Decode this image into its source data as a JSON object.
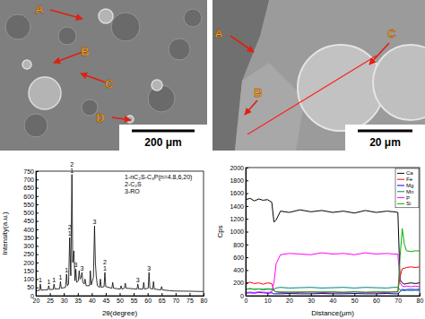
{
  "images": [
    {
      "labels": [
        "A",
        "B",
        "C",
        "D"
      ],
      "scale_bar": "200 μm"
    },
    {
      "labels": [
        "A",
        "B",
        "C"
      ],
      "scale_bar": "20 μm"
    }
  ],
  "chart_data": [
    {
      "type": "line",
      "x_label": "2θ(degree)",
      "y_label": "Intensity(a.u.)",
      "x": [
        20,
        21.3,
        21.6,
        21.9,
        23,
        24.3,
        24.6,
        24.9,
        26.2,
        26.5,
        26.8,
        28.5,
        28.8,
        29.1,
        30.6,
        31.0,
        31.3,
        31.7,
        32.1,
        32.5,
        32.9,
        33.2,
        33.6,
        34.0,
        34.3,
        34.6,
        35.2,
        35.5,
        35.8,
        36.2,
        36.5,
        36.8,
        37.3,
        37.6,
        38.0,
        39.2,
        39.5,
        39.8,
        40.6,
        41.0,
        41.3,
        41.6,
        42.0,
        42.8,
        43.1,
        43.4,
        44.4,
        44.7,
        45.0,
        47.2,
        47.5,
        47.8,
        50.2,
        50.5,
        50.8,
        51.7,
        52.0,
        52.3,
        56.2,
        56.5,
        56.8,
        58.3,
        58.6,
        58.9,
        60.2,
        60.5,
        60.8,
        61.8,
        62.1,
        62.4,
        64.7,
        65.0,
        65.3,
        68,
        70,
        75,
        80
      ],
      "values": [
        30,
        32,
        70,
        33,
        35,
        36,
        60,
        37,
        38,
        70,
        40,
        42,
        85,
        45,
        50,
        130,
        60,
        70,
        350,
        120,
        730,
        200,
        270,
        90,
        160,
        80,
        90,
        150,
        100,
        110,
        140,
        80,
        70,
        100,
        60,
        60,
        150,
        65,
        110,
        420,
        200,
        120,
        60,
        50,
        100,
        50,
        55,
        140,
        55,
        45,
        80,
        45,
        40,
        60,
        40,
        45,
        75,
        45,
        40,
        70,
        40,
        40,
        80,
        40,
        45,
        140,
        45,
        40,
        85,
        40,
        35,
        55,
        35,
        30,
        28,
        27,
        25
      ],
      "color": "#000000",
      "xlim": [
        20,
        80
      ],
      "xticks": [
        20,
        25,
        30,
        35,
        40,
        45,
        50,
        55,
        60,
        65,
        70,
        75,
        80
      ],
      "ylim": [
        0,
        750
      ],
      "yticks": [
        0,
        50,
        100,
        150,
        200,
        250,
        300,
        350,
        400,
        450,
        500,
        550,
        600,
        650,
        700,
        750
      ],
      "annotations": [
        {
          "x": 21.6,
          "text": "1"
        },
        {
          "x": 24.6,
          "text": "1"
        },
        {
          "x": 26.5,
          "text": "1"
        },
        {
          "x": 28.8,
          "text": "1"
        },
        {
          "x": 31.0,
          "text": "1"
        },
        {
          "x": 32.1,
          "text": "1"
        },
        {
          "x": 32.1,
          "text": "2"
        },
        {
          "x": 32.9,
          "text": "1"
        },
        {
          "x": 32.9,
          "text": "2"
        },
        {
          "x": 34.3,
          "text": "3"
        },
        {
          "x": 36.5,
          "text": "3"
        },
        {
          "x": 41.0,
          "text": "3"
        },
        {
          "x": 44.7,
          "text": "1"
        },
        {
          "x": 44.7,
          "text": "2"
        },
        {
          "x": 56.5,
          "text": "3"
        },
        {
          "x": 60.5,
          "text": "3"
        }
      ],
      "phase_key": [
        "1-nC₂S-C₃P(n=4.8,6,20)",
        "2-C₂S",
        "3-RO"
      ]
    },
    {
      "type": "line",
      "x_label": "Distance(μm)",
      "y_label": "Cps",
      "x": [
        0,
        2,
        4,
        6,
        8,
        10,
        12,
        13,
        14,
        16,
        20,
        25,
        30,
        35,
        40,
        45,
        50,
        55,
        60,
        65,
        68,
        70,
        71,
        72,
        73,
        74,
        76,
        78,
        80
      ],
      "series": [
        {
          "name": "Ca",
          "color": "#000000",
          "values": [
            1500,
            1520,
            1480,
            1510,
            1490,
            1500,
            1460,
            1150,
            1180,
            1320,
            1300,
            1340,
            1310,
            1330,
            1300,
            1320,
            1290,
            1330,
            1300,
            1320,
            1310,
            1300,
            250,
            200,
            180,
            190,
            200,
            190,
            200
          ]
        },
        {
          "name": "Fe",
          "color": "#ff0000",
          "values": [
            200,
            210,
            190,
            200,
            180,
            200,
            190,
            80,
            60,
            50,
            55,
            50,
            60,
            50,
            55,
            50,
            60,
            50,
            55,
            50,
            60,
            60,
            300,
            420,
            430,
            440,
            450,
            440,
            450
          ]
        },
        {
          "name": "Mg",
          "color": "#0000ff",
          "values": [
            40,
            45,
            40,
            50,
            45,
            40,
            45,
            30,
            30,
            30,
            35,
            30,
            30,
            35,
            30,
            30,
            35,
            30,
            30,
            35,
            30,
            30,
            60,
            100,
            90,
            95,
            100,
            95,
            100
          ]
        },
        {
          "name": "Mn",
          "color": "#008080",
          "values": [
            100,
            110,
            100,
            105,
            95,
            100,
            100,
            100,
            120,
            130,
            120,
            125,
            130,
            120,
            125,
            130,
            120,
            130,
            125,
            120,
            130,
            130,
            90,
            80,
            80,
            85,
            80,
            85,
            80
          ]
        },
        {
          "name": "P",
          "color": "#ff00ff",
          "values": [
            50,
            55,
            50,
            60,
            55,
            50,
            60,
            200,
            500,
            640,
            660,
            650,
            640,
            670,
            650,
            660,
            640,
            670,
            650,
            660,
            650,
            650,
            200,
            150,
            140,
            150,
            140,
            150,
            140
          ]
        },
        {
          "name": "Si",
          "color": "#00b000",
          "values": [
            100,
            110,
            100,
            105,
            100,
            110,
            100,
            80,
            60,
            60,
            55,
            60,
            55,
            60,
            60,
            55,
            60,
            55,
            60,
            60,
            55,
            60,
            600,
            1050,
            800,
            700,
            690,
            700,
            700
          ]
        }
      ],
      "xlim": [
        0,
        80
      ],
      "xticks": [
        0,
        10,
        20,
        30,
        40,
        50,
        60,
        70,
        80
      ],
      "ylim": [
        0,
        2000
      ],
      "yticks": [
        0,
        200,
        400,
        600,
        800,
        1000,
        1200,
        1400,
        1600,
        1800,
        2000
      ],
      "legend": "top-right"
    }
  ]
}
